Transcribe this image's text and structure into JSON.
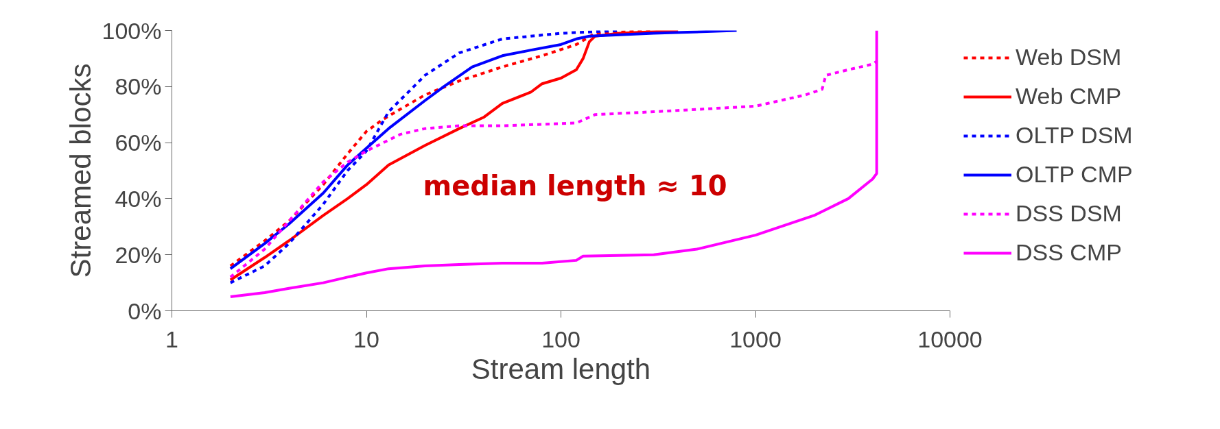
{
  "chart_data": {
    "type": "line",
    "xlabel": "Stream length",
    "ylabel": "Streamed blocks",
    "log": "x",
    "xlim": [
      1,
      10000
    ],
    "xticks": [
      1,
      10,
      100,
      1000,
      10000
    ],
    "ylim": [
      0,
      100
    ],
    "yticks": [
      {
        "value": 0,
        "label": "0%"
      },
      {
        "value": 20,
        "label": "20%"
      },
      {
        "value": 40,
        "label": "40%"
      },
      {
        "value": 60,
        "label": "60%"
      },
      {
        "value": 80,
        "label": "80%"
      },
      {
        "value": 100,
        "label": "100%"
      }
    ],
    "grid": false,
    "legend": "right",
    "annotations": [
      "median length ≈ 10"
    ],
    "series": [
      {
        "name": "Web DSM",
        "color": "#ff0000",
        "line_style": "dashed",
        "x": [
          2,
          3,
          4,
          6,
          8,
          10,
          12,
          15,
          20,
          30,
          50,
          80,
          120,
          150,
          300
        ],
        "values": [
          16,
          25,
          32,
          45,
          56,
          64,
          68,
          72,
          77,
          82,
          87,
          91,
          95,
          99,
          100
        ]
      },
      {
        "name": "Web CMP",
        "color": "#ff0000",
        "line_style": "solid",
        "x": [
          2,
          3,
          4,
          6,
          8,
          10,
          13,
          20,
          30,
          40,
          50,
          70,
          80,
          100,
          120,
          130,
          140,
          150,
          200,
          400
        ],
        "values": [
          11,
          19,
          25,
          34,
          40,
          45,
          52,
          59,
          65,
          69,
          74,
          78,
          81,
          83,
          86,
          90,
          96,
          98,
          99,
          100
        ]
      },
      {
        "name": "OLTP DSM",
        "color": "#0000ff",
        "line_style": "dashed",
        "x": [
          2,
          3,
          4,
          6,
          8,
          10,
          13,
          20,
          30,
          50,
          100,
          200
        ],
        "values": [
          10,
          16,
          24,
          38,
          50,
          57,
          71,
          84,
          92,
          97,
          99,
          100
        ]
      },
      {
        "name": "OLTP CMP",
        "color": "#0000ff",
        "line_style": "solid",
        "x": [
          2,
          3,
          4,
          6,
          8,
          10,
          13,
          20,
          25,
          35,
          50,
          70,
          100,
          120,
          140,
          300,
          800
        ],
        "values": [
          15,
          24,
          31,
          42,
          52,
          58,
          65,
          75,
          80,
          87,
          91,
          93,
          95,
          97,
          98,
          99,
          100
        ]
      },
      {
        "name": "DSS DSM",
        "color": "#ff00ff",
        "line_style": "dashed",
        "x": [
          2,
          3,
          4,
          6,
          8,
          10,
          15,
          20,
          30,
          50,
          120,
          150,
          300,
          1000,
          1800,
          2200,
          2300,
          3000,
          4000,
          4200
        ],
        "values": [
          12,
          22,
          32,
          46,
          53,
          57,
          63,
          65,
          66,
          66,
          67,
          70,
          71,
          73,
          77,
          79,
          84,
          86,
          88,
          89
        ]
      },
      {
        "name": "DSS CMP",
        "color": "#ff00ff",
        "line_style": "solid",
        "x": [
          2,
          3,
          4,
          6,
          8,
          10,
          13,
          20,
          30,
          50,
          80,
          120,
          130,
          300,
          500,
          1000,
          2000,
          3000,
          4000,
          4200,
          4200
        ],
        "values": [
          5,
          6.5,
          8,
          10,
          12,
          13.5,
          15,
          16,
          16.5,
          17,
          17,
          18,
          19.5,
          20,
          22,
          27,
          34,
          40,
          47,
          49,
          100
        ]
      }
    ]
  }
}
